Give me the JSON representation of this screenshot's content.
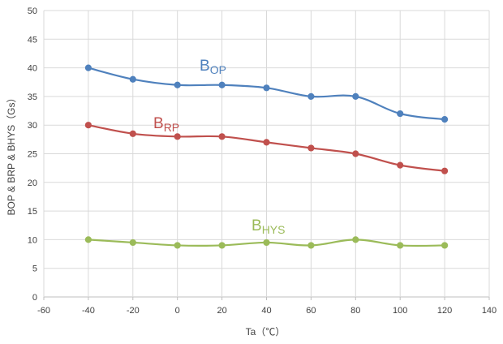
{
  "chart_data": {
    "type": "line",
    "title": "",
    "xlabel": "Ta（℃）",
    "ylabel": "BOP & BRP & BHYS（Gs）",
    "xlim": [
      -60,
      140
    ],
    "ylim": [
      0,
      50
    ],
    "x_ticks": [
      -60,
      -40,
      -20,
      0,
      20,
      40,
      60,
      80,
      100,
      120,
      140
    ],
    "y_ticks": [
      0,
      5,
      10,
      15,
      20,
      25,
      30,
      35,
      40,
      45,
      50
    ],
    "grid": true,
    "legend": "none",
    "x": [
      -40,
      -20,
      0,
      20,
      40,
      60,
      80,
      100,
      120
    ],
    "series": [
      {
        "id": "bop",
        "label_main": "B",
        "label_sub": "OP",
        "color": "#4F81BD",
        "values": [
          40,
          38,
          37,
          37,
          36.5,
          35,
          35,
          32,
          31
        ]
      },
      {
        "id": "brp",
        "label_main": "B",
        "label_sub": "RP",
        "color": "#C0504D",
        "values": [
          30,
          28.5,
          28,
          28,
          27,
          26,
          25,
          23,
          22
        ]
      },
      {
        "id": "bhys",
        "label_main": "B",
        "label_sub": "HYS",
        "color": "#9BBB59",
        "values": [
          10,
          9.5,
          9,
          9,
          9.5,
          9,
          10,
          9,
          9
        ]
      }
    ]
  }
}
